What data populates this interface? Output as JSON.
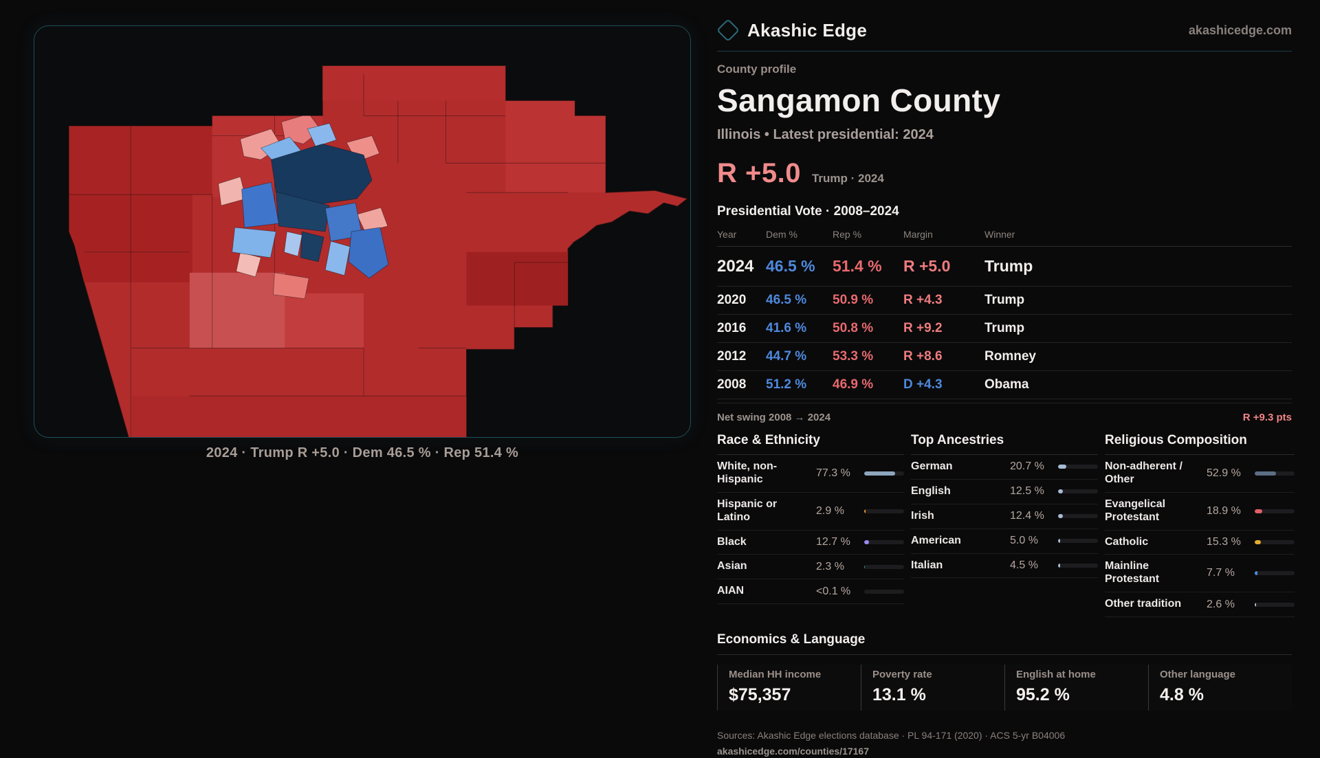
{
  "brand": {
    "name": "Akashic Edge",
    "site": "akashicedge.com"
  },
  "map": {
    "caption": "2024 · Trump R +5.0 · Dem 46.5 % · Rep 51.4 %"
  },
  "profile": {
    "eyebrow": "County profile",
    "title": "Sangamon County",
    "subtitle": "Illinois • Latest presidential: 2024",
    "headline_margin": "R +5.0",
    "headline_note": "Trump · 2024"
  },
  "vote_table": {
    "title": "Presidential Vote · 2008–2024",
    "columns": [
      "Year",
      "Dem %",
      "Rep %",
      "Margin",
      "Winner"
    ],
    "rows": [
      {
        "year": "2024",
        "dem": "46.5 %",
        "rep": "51.4 %",
        "margin": "R +5.0",
        "side": "R",
        "winner": "Trump"
      },
      {
        "year": "2020",
        "dem": "46.5 %",
        "rep": "50.9 %",
        "margin": "R +4.3",
        "side": "R",
        "winner": "Trump"
      },
      {
        "year": "2016",
        "dem": "41.6 %",
        "rep": "50.8 %",
        "margin": "R +9.2",
        "side": "R",
        "winner": "Trump"
      },
      {
        "year": "2012",
        "dem": "44.7 %",
        "rep": "53.3 %",
        "margin": "R +8.6",
        "side": "R",
        "winner": "Romney"
      },
      {
        "year": "2008",
        "dem": "51.2 %",
        "rep": "46.9 %",
        "margin": "D +4.3",
        "side": "D",
        "winner": "Obama"
      }
    ],
    "net_swing_label": "Net swing 2008 → 2024",
    "net_swing_value": "R +9.3 pts"
  },
  "sections": {
    "race": {
      "title": "Race & Ethnicity",
      "rows": [
        {
          "label": "White, non-Hispanic",
          "value": "77.3 %",
          "pct": 77.3,
          "color": "#8ea6bd"
        },
        {
          "label": "Hispanic or Latino",
          "value": "2.9 %",
          "pct": 2.9,
          "color": "#e8952e"
        },
        {
          "label": "Black",
          "value": "12.7 %",
          "pct": 12.7,
          "color": "#9d87f0"
        },
        {
          "label": "Asian",
          "value": "2.3 %",
          "pct": 2.3,
          "color": "#2ba583"
        },
        {
          "label": "AIAN",
          "value": "<0.1 %",
          "pct": 0,
          "color": "#8ea6bd"
        }
      ]
    },
    "ancestries": {
      "title": "Top Ancestries",
      "rows": [
        {
          "label": "German",
          "value": "20.7 %",
          "pct": 20.7,
          "color": "#a7bcd4"
        },
        {
          "label": "English",
          "value": "12.5 %",
          "pct": 12.5,
          "color": "#a7bcd4"
        },
        {
          "label": "Irish",
          "value": "12.4 %",
          "pct": 12.4,
          "color": "#a7bcd4"
        },
        {
          "label": "American",
          "value": "5.0 %",
          "pct": 5.0,
          "color": "#a7bcd4"
        },
        {
          "label": "Italian",
          "value": "4.5 %",
          "pct": 4.5,
          "color": "#a7bcd4"
        }
      ]
    },
    "religion": {
      "title": "Religious Composition",
      "rows": [
        {
          "label": "Non-adherent / Other",
          "value": "52.9 %",
          "pct": 52.9,
          "color": "#5c6e84"
        },
        {
          "label": "Evangelical Protestant",
          "value": "18.9 %",
          "pct": 18.9,
          "color": "#e05f66"
        },
        {
          "label": "Catholic",
          "value": "15.3 %",
          "pct": 15.3,
          "color": "#e6ab2e"
        },
        {
          "label": "Mainline Protestant",
          "value": "7.7 %",
          "pct": 7.7,
          "color": "#4a8fe2"
        },
        {
          "label": "Other tradition",
          "value": "2.6 %",
          "pct": 2.6,
          "color": "#b9bdc4"
        }
      ]
    }
  },
  "economics": {
    "title": "Economics & Language",
    "stats": [
      {
        "label": "Median HH income",
        "value": "$75,357"
      },
      {
        "label": "Poverty rate",
        "value": "13.1 %"
      },
      {
        "label": "English at home",
        "value": "95.2 %"
      },
      {
        "label": "Other language",
        "value": "4.8 %"
      }
    ]
  },
  "footer": {
    "sources": "Sources: Akashic Edge elections database · PL 94-171 (2020) · ACS 5-yr B04006",
    "link": "akashicedge.com/counties/17167"
  },
  "colors": {
    "accent_rep": "#ef7c7e",
    "accent_dem": "#4f89dd",
    "panel_border": "#1e4e59",
    "map_base_red": "#b22c2c",
    "map_city_navy": "#17395e",
    "page_bg": "#0a0a0b"
  }
}
